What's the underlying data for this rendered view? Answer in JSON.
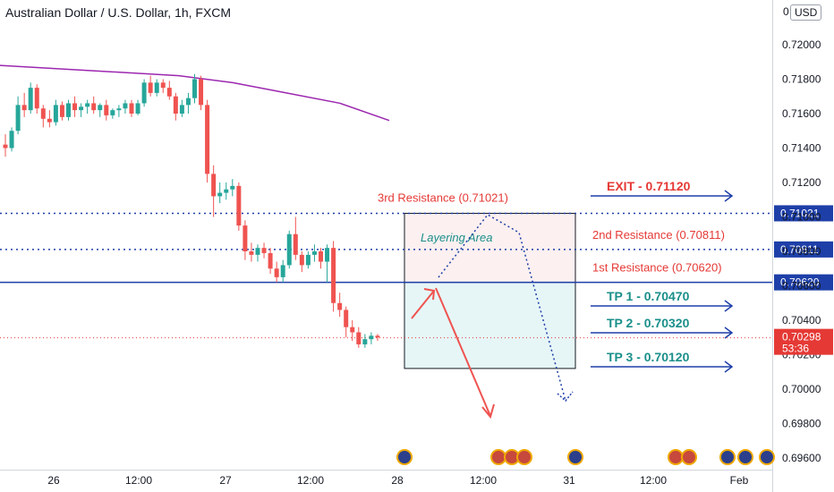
{
  "header": {
    "title": "Australian Dollar / U.S. Dollar, 1h, FXCM",
    "currency": "USD",
    "top_tick": "0"
  },
  "chart_data": {
    "type": "candlestick",
    "symbol": "AUDUSD",
    "timeframe": "1h",
    "ylim": [
      0.6955,
      0.7212
    ],
    "y_ticks": [
      "0.72000",
      "0.71800",
      "0.71600",
      "0.71400",
      "0.71200",
      "0.71000",
      "0.70800",
      "0.70600",
      "0.70400",
      "0.70200",
      "0.70000",
      "0.69800",
      "0.69600"
    ],
    "x_ticks": [
      "26",
      "12:00",
      "27",
      "12:00",
      "28",
      "12:00",
      "31",
      "12:00",
      "Feb"
    ],
    "ohlc": [
      [
        0.7142,
        0.7148,
        0.7135,
        0.714
      ],
      [
        0.714,
        0.7152,
        0.7138,
        0.715
      ],
      [
        0.715,
        0.717,
        0.7148,
        0.7165
      ],
      [
        0.7165,
        0.7172,
        0.7158,
        0.7162
      ],
      [
        0.7162,
        0.7178,
        0.716,
        0.7175
      ],
      [
        0.7175,
        0.7177,
        0.716,
        0.7163
      ],
      [
        0.7163,
        0.7165,
        0.7152,
        0.7157
      ],
      [
        0.7157,
        0.7162,
        0.7152,
        0.7155
      ],
      [
        0.7155,
        0.7168,
        0.7153,
        0.7165
      ],
      [
        0.7165,
        0.7167,
        0.7156,
        0.7158
      ],
      [
        0.7158,
        0.7168,
        0.7156,
        0.7166
      ],
      [
        0.7166,
        0.717,
        0.7158,
        0.7162
      ],
      [
        0.7162,
        0.7166,
        0.7158,
        0.7164
      ],
      [
        0.7164,
        0.7168,
        0.716,
        0.7166
      ],
      [
        0.7166,
        0.717,
        0.716,
        0.7162
      ],
      [
        0.7162,
        0.7166,
        0.7158,
        0.7165
      ],
      [
        0.7165,
        0.7168,
        0.7156,
        0.7159
      ],
      [
        0.7159,
        0.7163,
        0.7157,
        0.7162
      ],
      [
        0.7162,
        0.7165,
        0.7158,
        0.7163
      ],
      [
        0.7163,
        0.7168,
        0.716,
        0.7166
      ],
      [
        0.7166,
        0.7168,
        0.7158,
        0.716
      ],
      [
        0.716,
        0.7168,
        0.7159,
        0.7166
      ],
      [
        0.7166,
        0.718,
        0.7164,
        0.7178
      ],
      [
        0.7178,
        0.7182,
        0.717,
        0.7172
      ],
      [
        0.7172,
        0.718,
        0.717,
        0.7178
      ],
      [
        0.7178,
        0.718,
        0.7172,
        0.7175
      ],
      [
        0.7175,
        0.7179,
        0.7168,
        0.717
      ],
      [
        0.717,
        0.7172,
        0.7156,
        0.716
      ],
      [
        0.716,
        0.7168,
        0.7158,
        0.7165
      ],
      [
        0.7165,
        0.7172,
        0.716,
        0.7169
      ],
      [
        0.7169,
        0.7183,
        0.7166,
        0.718
      ],
      [
        0.718,
        0.7182,
        0.7162,
        0.7165
      ],
      [
        0.7165,
        0.7168,
        0.712,
        0.7125
      ],
      [
        0.7125,
        0.713,
        0.71,
        0.7112
      ],
      [
        0.7112,
        0.712,
        0.7108,
        0.7114
      ],
      [
        0.7114,
        0.712,
        0.711,
        0.7116
      ],
      [
        0.7116,
        0.7122,
        0.7112,
        0.7118
      ],
      [
        0.7118,
        0.712,
        0.7092,
        0.7095
      ],
      [
        0.7095,
        0.7098,
        0.7075,
        0.708
      ],
      [
        0.708,
        0.7085,
        0.7074,
        0.7078
      ],
      [
        0.7078,
        0.7084,
        0.7074,
        0.7082
      ],
      [
        0.7082,
        0.7085,
        0.7076,
        0.7079
      ],
      [
        0.7079,
        0.7082,
        0.7067,
        0.707
      ],
      [
        0.707,
        0.7074,
        0.7062,
        0.7065
      ],
      [
        0.7065,
        0.7075,
        0.7062,
        0.7072
      ],
      [
        0.7072,
        0.7092,
        0.707,
        0.709
      ],
      [
        0.709,
        0.71,
        0.7075,
        0.7078
      ],
      [
        0.7078,
        0.708,
        0.7068,
        0.7072
      ],
      [
        0.7072,
        0.708,
        0.707,
        0.7078
      ],
      [
        0.7078,
        0.7084,
        0.7074,
        0.708
      ],
      [
        0.708,
        0.7082,
        0.707,
        0.7074
      ],
      [
        0.7074,
        0.7084,
        0.7062,
        0.7082
      ],
      [
        0.7082,
        0.7086,
        0.7045,
        0.705
      ],
      [
        0.705,
        0.7056,
        0.7042,
        0.7046
      ],
      [
        0.7046,
        0.7048,
        0.703,
        0.7036
      ],
      [
        0.7036,
        0.704,
        0.7028,
        0.7033
      ],
      [
        0.7033,
        0.7036,
        0.7024,
        0.7026
      ],
      [
        0.7026,
        0.7032,
        0.7024,
        0.7029
      ],
      [
        0.7029,
        0.7033,
        0.7026,
        0.7031
      ],
      [
        0.7031,
        0.7032,
        0.7028,
        0.703
      ]
    ],
    "moving_average": [
      [
        0,
        0.7188
      ],
      [
        100,
        0.7185
      ],
      [
        200,
        0.7182
      ],
      [
        260,
        0.7178
      ],
      [
        320,
        0.7172
      ],
      [
        380,
        0.7166
      ],
      [
        435,
        0.7156
      ]
    ],
    "levels": [
      {
        "value": 0.71021,
        "label": "3rd Resistance (0.71021)",
        "tag": "0.71021",
        "style": "dotted",
        "color": "#1e3fa8"
      },
      {
        "value": 0.70811,
        "label": "2nd Resistance (0.70811)",
        "tag": "0.70811",
        "style": "dotted",
        "color": "#1e3fa8"
      },
      {
        "value": 0.7062,
        "label": "1st Resistance (0.70620)",
        "tag": "0.70620",
        "style": "solid",
        "color": "#1e3fa8"
      }
    ],
    "current_price": {
      "value": 0.70298,
      "label": "0.70298",
      "countdown": "53:36",
      "color": "#e53935"
    },
    "zones": [
      {
        "name": "Layering Area",
        "from": 0.7062,
        "to": 0.71021,
        "color": "#fdf0f0"
      },
      {
        "name": "",
        "from": 0.7012,
        "to": 0.7062,
        "color": "#e6f6f7"
      }
    ],
    "targets": [
      {
        "label": "EXIT - 0.71120",
        "value": 0.7112,
        "color": "#e53935"
      },
      {
        "label": "TP 1 - 0.70470",
        "value": 0.7047,
        "color": "#1a8f8a"
      },
      {
        "label": "TP 2 - 0.70320",
        "value": 0.7032,
        "color": "#1a8f8a"
      },
      {
        "label": "TP 3 - 0.70120",
        "value": 0.7012,
        "color": "#1a8f8a"
      }
    ],
    "annotation": "Layering Area",
    "colors": {
      "up": "#26a69a",
      "down": "#ef5350",
      "ma": "#9c27b0",
      "level": "#1e3fa8"
    }
  }
}
